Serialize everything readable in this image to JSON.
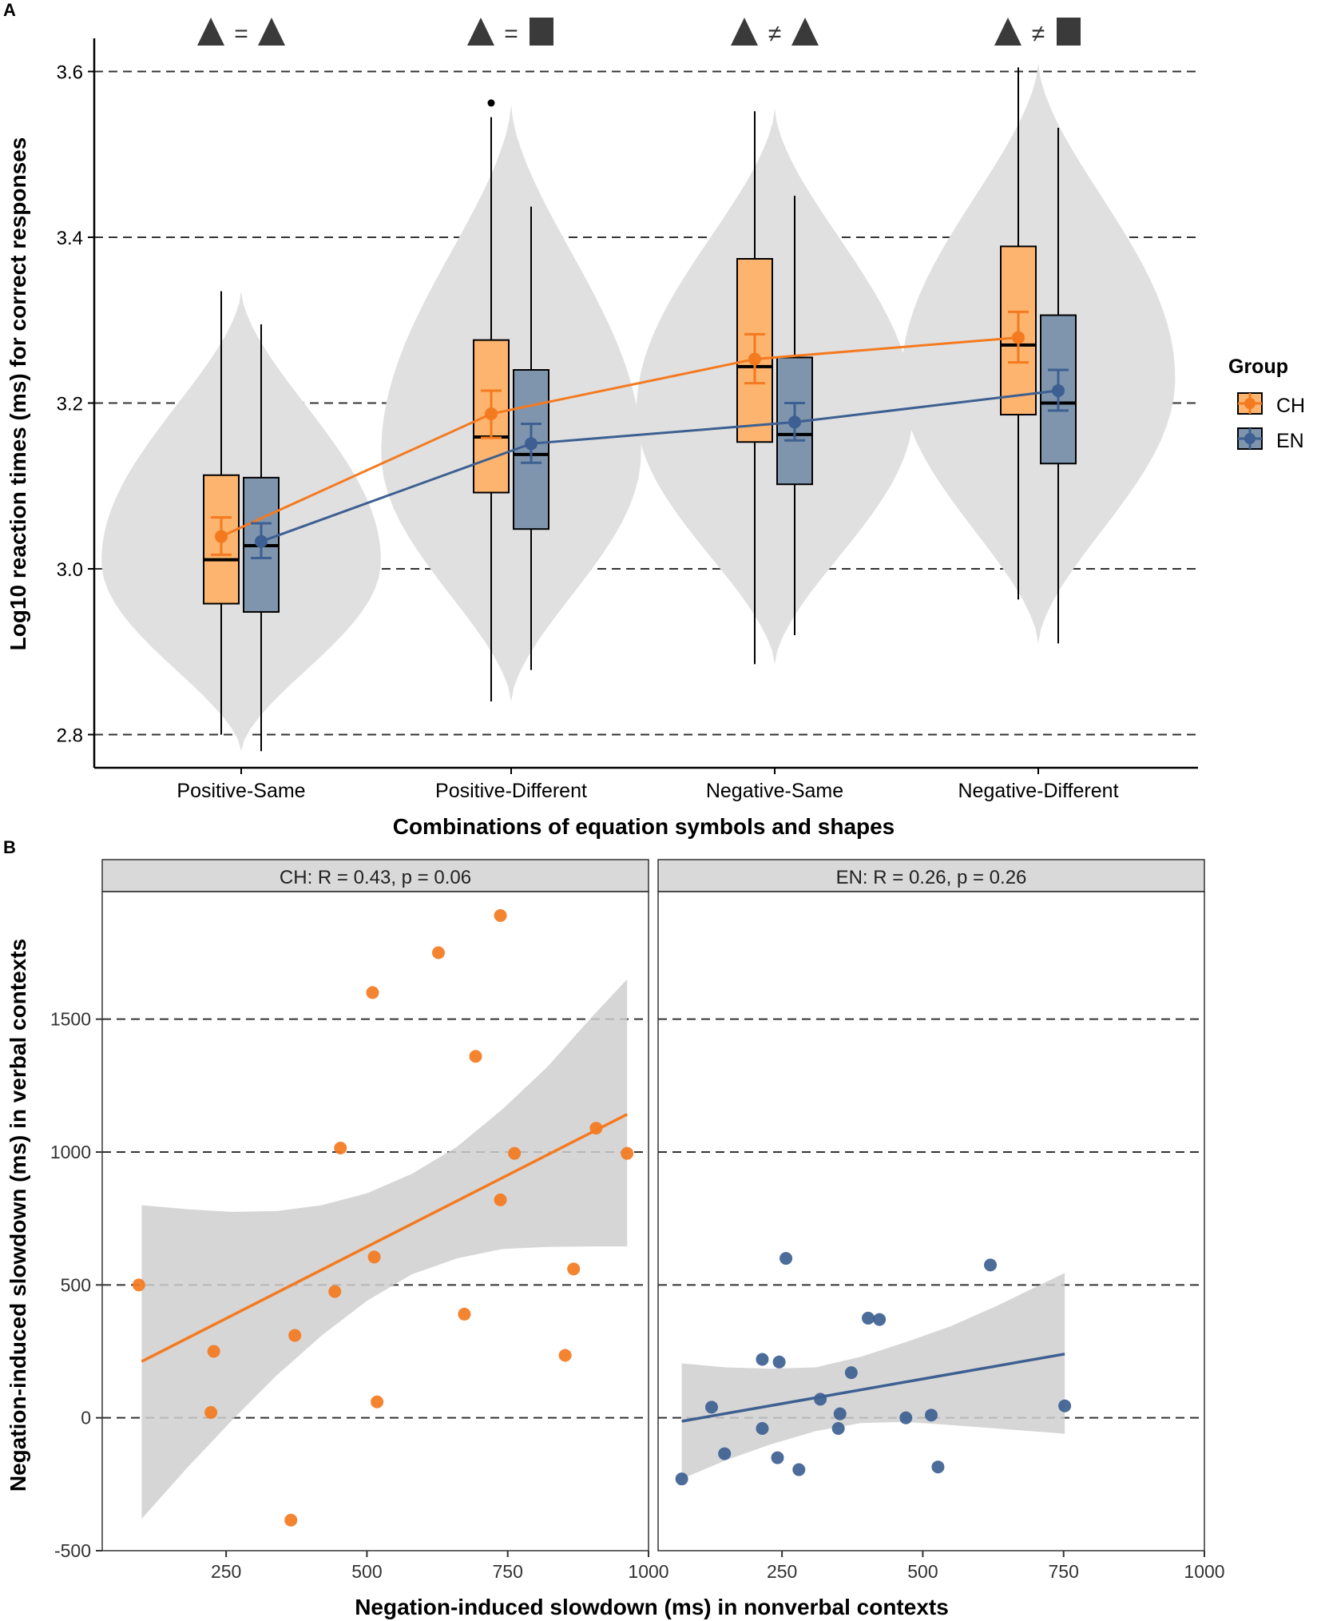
{
  "colors": {
    "ch": "#F47A20",
    "ch_box": "#FDB46E",
    "en": "#3D5F91",
    "en_box": "#7E95AD",
    "violin": "#E0E0E0",
    "band": "#CFCFCF",
    "strip": "#D9D9D9",
    "grid": "#333333",
    "axis": "#000000"
  },
  "chart_data": [
    {
      "panel_label": "A",
      "type": "box-violin",
      "ylabel": "Log10 reaction times (ms) for correct responses",
      "xlabel": "Combinations of equation symbols and shapes",
      "ylim": [
        2.76,
        3.64
      ],
      "yticks": [
        "2.8",
        "3.0",
        "3.2",
        "3.4",
        "3.6"
      ],
      "gridlines": [
        2.8,
        3.0,
        3.2,
        3.4,
        3.6
      ],
      "categories": [
        "Positive-Same",
        "Positive-Different",
        "Negative-Same",
        "Negative-Different"
      ],
      "symbol_headers": [
        {
          "left": "triangle",
          "op": "=",
          "right": "triangle"
        },
        {
          "left": "triangle",
          "op": "=",
          "right": "square"
        },
        {
          "left": "triangle",
          "op": "≠",
          "right": "triangle"
        },
        {
          "left": "triangle",
          "op": "≠",
          "right": "square"
        }
      ],
      "legend": {
        "title": "Group",
        "entries": [
          "CH",
          "EN"
        ]
      },
      "violins": [
        {
          "min": 2.78,
          "max": 3.335,
          "max_width_at": 3.01,
          "max_halfwidth_frac": 1.0
        },
        {
          "min": 2.84,
          "max": 3.56,
          "max_width_at": 3.14,
          "max_halfwidth_frac": 0.93
        },
        {
          "min": 2.885,
          "max": 3.555,
          "max_width_at": 3.19,
          "max_halfwidth_frac": 0.99
        },
        {
          "min": 2.91,
          "max": 3.61,
          "max_width_at": 3.23,
          "max_halfwidth_frac": 0.98
        }
      ],
      "series": [
        {
          "name": "CH",
          "boxes": [
            {
              "wlo": 2.8,
              "q1": 2.958,
              "median": 3.011,
              "q3": 3.113,
              "whi": 3.335,
              "outliers": []
            },
            {
              "wlo": 2.84,
              "q1": 3.092,
              "median": 3.159,
              "q3": 3.276,
              "whi": 3.545,
              "outliers": [
                3.562
              ]
            },
            {
              "wlo": 2.885,
              "q1": 3.153,
              "median": 3.244,
              "q3": 3.374,
              "whi": 3.552,
              "outliers": []
            },
            {
              "wlo": 2.963,
              "q1": 3.186,
              "median": 3.27,
              "q3": 3.389,
              "whi": 3.605,
              "outliers": []
            }
          ],
          "means": [
            3.039,
            3.187,
            3.253,
            3.279
          ],
          "ci_low": [
            3.017,
            3.158,
            3.224,
            3.249
          ],
          "ci_high": [
            3.062,
            3.215,
            3.283,
            3.31
          ]
        },
        {
          "name": "EN",
          "boxes": [
            {
              "wlo": 2.78,
              "q1": 2.948,
              "median": 3.028,
              "q3": 3.11,
              "whi": 3.295,
              "outliers": []
            },
            {
              "wlo": 2.878,
              "q1": 3.048,
              "median": 3.138,
              "q3": 3.24,
              "whi": 3.437,
              "outliers": []
            },
            {
              "wlo": 2.92,
              "q1": 3.102,
              "median": 3.162,
              "q3": 3.255,
              "whi": 3.45,
              "outliers": []
            },
            {
              "wlo": 2.91,
              "q1": 3.127,
              "median": 3.2,
              "q3": 3.306,
              "whi": 3.532,
              "outliers": []
            }
          ],
          "means": [
            3.033,
            3.151,
            3.177,
            3.215
          ],
          "ci_low": [
            3.013,
            3.128,
            3.155,
            3.191
          ],
          "ci_high": [
            3.055,
            3.175,
            3.2,
            3.24
          ]
        }
      ]
    },
    {
      "panel_label": "B",
      "type": "scatter",
      "ylabel": "Negation-induced slowdown (ms) in verbal contexts",
      "xlabel": "Negation-induced slowdown (ms) in nonverbal contexts",
      "xlim": [
        30,
        1000
      ],
      "ylim": [
        -500,
        1980
      ],
      "xticks": [
        250,
        500,
        750,
        1000
      ],
      "xtick_labels": [
        "250",
        "500",
        "750",
        "1000"
      ],
      "yticks": [
        -500,
        0,
        500,
        1000,
        1500
      ],
      "ytick_labels": [
        "-500",
        "0",
        "500",
        "1000",
        "1500"
      ],
      "gridlines": [
        0,
        500,
        1000,
        1500
      ],
      "facets": [
        {
          "strip": "CH: R = 0.43, p = 0.06",
          "series": "CH",
          "x": [
            95,
            228,
            223,
            365,
            372,
            443,
            453,
            513,
            510,
            518,
            627,
            673,
            693,
            737,
            737,
            762,
            852,
            867,
            907,
            962
          ],
          "y": [
            500,
            250,
            20,
            -385,
            310,
            475,
            1015,
            605,
            1600,
            60,
            1750,
            390,
            1360,
            820,
            1890,
            995,
            235,
            560,
            1090,
            995
          ],
          "fit_x": [
            100,
            962
          ],
          "fit_y": [
            212,
            1142
          ],
          "band_x": [
            100,
            180,
            260,
            340,
            420,
            500,
            580,
            660,
            740,
            820,
            900,
            962
          ],
          "band_lo": [
            -380,
            -190,
            -10,
            160,
            310,
            440,
            540,
            600,
            635,
            643,
            645,
            645
          ],
          "band_hi": [
            800,
            785,
            775,
            778,
            800,
            845,
            918,
            1020,
            1160,
            1320,
            1510,
            1650
          ]
        },
        {
          "strip": "EN: R = 0.26, p = 0.26",
          "series": "EN",
          "x": [
            72,
            125,
            148,
            215,
            215,
            242,
            245,
            257,
            280,
            318,
            350,
            353,
            373,
            403,
            423,
            470,
            515,
            527,
            620,
            752
          ],
          "y": [
            -230,
            40,
            -135,
            -40,
            220,
            -150,
            210,
            600,
            -195,
            70,
            -40,
            15,
            170,
            375,
            370,
            0,
            10,
            -185,
            575,
            45
          ],
          "fit_x": [
            72,
            752
          ],
          "fit_y": [
            -13,
            240
          ],
          "band_x": [
            72,
            150,
            230,
            310,
            390,
            470,
            550,
            630,
            752
          ],
          "band_lo": [
            -230,
            -160,
            -100,
            -50,
            -20,
            -15,
            -27,
            -40,
            -60
          ],
          "band_hi": [
            205,
            190,
            185,
            190,
            230,
            285,
            345,
            420,
            545
          ]
        }
      ]
    }
  ]
}
